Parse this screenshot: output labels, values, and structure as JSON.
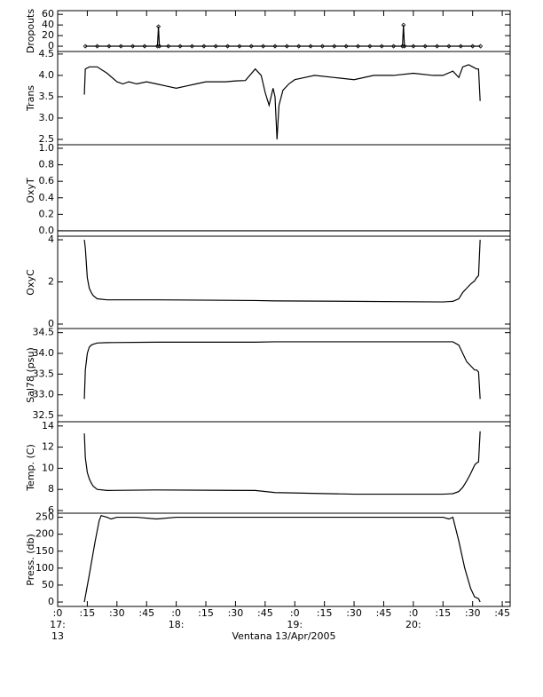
{
  "chart_data": [
    {
      "type": "line",
      "ylabel": "Dropouts",
      "ylim": [
        -10,
        67
      ],
      "yticks": [
        0,
        20,
        40,
        60
      ],
      "markers": true,
      "x": [
        14,
        20,
        26,
        32,
        38,
        44,
        50.5,
        51,
        51.5,
        56,
        62,
        68,
        74,
        80,
        86,
        92,
        98,
        104,
        110,
        116,
        122,
        128,
        134,
        140,
        146,
        152,
        158,
        164,
        170,
        174.5,
        175,
        175.5,
        180,
        186,
        192,
        198,
        204,
        210,
        214
      ],
      "series": [
        {
          "color": "#000000",
          "values": [
            0,
            0,
            0,
            0,
            0,
            0,
            0,
            37,
            0,
            0,
            0,
            0,
            0,
            0,
            0,
            0,
            0,
            0,
            0,
            0,
            0,
            0,
            0,
            0,
            0,
            0,
            0,
            0,
            0,
            0,
            40,
            0,
            0,
            0,
            0,
            0,
            0,
            0,
            0
          ]
        }
      ]
    },
    {
      "type": "line",
      "ylabel": "Trans",
      "ylim": [
        2.375,
        4.56
      ],
      "yticks": [
        2.5,
        {
          "value": 3,
          "label": "3.0"
        },
        3.5,
        {
          "value": 4,
          "label": "4.0"
        },
        4.5
      ],
      "markers": false,
      "x": [
        13.5,
        14,
        16,
        20,
        25,
        30,
        33,
        36,
        40,
        45,
        50,
        55,
        60,
        65,
        70,
        75,
        80,
        85,
        90,
        95,
        100,
        103,
        105,
        107,
        109,
        110,
        111,
        112,
        114,
        117,
        120,
        125,
        130,
        140,
        150,
        160,
        170,
        180,
        190,
        195,
        200,
        203,
        205,
        208,
        210,
        212,
        213,
        213.8
      ],
      "series": [
        {
          "color": "#000000",
          "values": [
            3.55,
            4.15,
            4.2,
            4.2,
            4.05,
            3.85,
            3.8,
            3.85,
            3.8,
            3.85,
            3.8,
            3.75,
            3.7,
            3.75,
            3.8,
            3.85,
            3.85,
            3.85,
            3.87,
            3.88,
            4.15,
            4.0,
            3.6,
            3.3,
            3.7,
            3.5,
            2.5,
            3.3,
            3.65,
            3.8,
            3.9,
            3.95,
            4.0,
            3.95,
            3.9,
            4.0,
            4.0,
            4.05,
            4.0,
            4.0,
            4.1,
            3.95,
            4.2,
            4.25,
            4.2,
            4.15,
            4.15,
            3.4
          ]
        }
      ]
    },
    {
      "type": "line",
      "ylabel": "OxyT",
      "ylim": [
        -0.065,
        1.043
      ],
      "yticks": [
        {
          "value": 0,
          "label": "0.0"
        },
        0.2,
        0.4,
        0.6,
        0.8,
        {
          "value": 1,
          "label": "1.0"
        }
      ],
      "markers": false,
      "x": [
        0,
        229
      ],
      "series": [
        {
          "color": "#000000",
          "values": [
            0,
            0
          ]
        }
      ]
    },
    {
      "type": "line",
      "ylabel": "OxyC",
      "ylim": [
        -0.21,
        4.17
      ],
      "yticks": [
        0,
        2,
        4
      ],
      "markers": false,
      "x": [
        13.5,
        14,
        15,
        16,
        17,
        18,
        20,
        25,
        50,
        100,
        110,
        150,
        195,
        200,
        203,
        205,
        207,
        209,
        211,
        212,
        213,
        213.8
      ],
      "series": [
        {
          "color": "#000000",
          "values": [
            4.0,
            3.6,
            2.2,
            1.7,
            1.5,
            1.35,
            1.2,
            1.15,
            1.15,
            1.12,
            1.1,
            1.08,
            1.05,
            1.08,
            1.2,
            1.5,
            1.7,
            1.9,
            2.05,
            2.2,
            2.3,
            4.0
          ]
        }
      ]
    },
    {
      "type": "line",
      "ylabel": "Sal78 (psu)",
      "ylim": [
        32.35,
        34.6
      ],
      "yticks": [
        32.5,
        {
          "value": 33,
          "label": "33.0"
        },
        33.5,
        {
          "value": 34,
          "label": "34.0"
        },
        34.5
      ],
      "markers": false,
      "x": [
        13.5,
        14,
        15,
        16,
        17,
        18,
        20,
        25,
        50,
        100,
        110,
        150,
        195,
        200,
        203,
        205,
        207,
        209,
        211,
        212,
        213,
        213.8
      ],
      "series": [
        {
          "color": "#000000",
          "values": [
            32.9,
            33.6,
            34.0,
            34.15,
            34.2,
            34.22,
            34.25,
            34.26,
            34.27,
            34.27,
            34.28,
            34.28,
            34.28,
            34.28,
            34.2,
            34.0,
            33.8,
            33.7,
            33.6,
            33.6,
            33.55,
            32.9
          ]
        }
      ]
    },
    {
      "type": "line",
      "ylabel": "Temp. (C)",
      "ylim": [
        5.75,
        14.4
      ],
      "yticks": [
        6,
        8,
        10,
        12,
        14
      ],
      "markers": false,
      "x": [
        13.5,
        14,
        15,
        16,
        17,
        18,
        20,
        25,
        50,
        100,
        110,
        150,
        195,
        200,
        203,
        205,
        207,
        209,
        211,
        212,
        213,
        213.8
      ],
      "series": [
        {
          "color": "#000000",
          "values": [
            13.3,
            11.0,
            9.6,
            9.0,
            8.6,
            8.3,
            8.0,
            7.9,
            7.95,
            7.9,
            7.7,
            7.55,
            7.55,
            7.6,
            7.8,
            8.2,
            8.8,
            9.5,
            10.3,
            10.5,
            10.6,
            13.5
          ]
        }
      ]
    },
    {
      "type": "line",
      "ylabel": "Press. (db)",
      "ylim": [
        -13,
        262
      ],
      "yticks": [
        0,
        50,
        100,
        150,
        200,
        250
      ],
      "markers": false,
      "x": [
        13.5,
        16,
        19,
        21,
        22,
        25,
        27,
        30,
        40,
        50,
        60,
        100,
        150,
        190,
        195,
        198,
        200,
        203,
        206,
        209,
        211,
        213,
        213.8
      ],
      "series": [
        {
          "color": "#000000",
          "values": [
            0,
            80,
            180,
            240,
            255,
            250,
            245,
            250,
            250,
            245,
            250,
            250,
            250,
            250,
            250,
            245,
            250,
            180,
            100,
            40,
            15,
            10,
            0
          ]
        }
      ]
    }
  ],
  "x_axis": {
    "xlim": [
      0,
      229
    ],
    "xticks": [
      {
        "value": 0,
        "label": ":0"
      },
      {
        "value": 15,
        "label": ":15"
      },
      {
        "value": 30,
        "label": ":30"
      },
      {
        "value": 45,
        "label": ":45"
      },
      {
        "value": 60,
        "label": ":0"
      },
      {
        "value": 75,
        "label": ":15"
      },
      {
        "value": 90,
        "label": ":30"
      },
      {
        "value": 105,
        "label": ":45"
      },
      {
        "value": 120,
        "label": ":0"
      },
      {
        "value": 135,
        "label": ":15"
      },
      {
        "value": 150,
        "label": ":30"
      },
      {
        "value": 165,
        "label": ":45"
      },
      {
        "value": 180,
        "label": ":0"
      },
      {
        "value": 195,
        "label": ":15"
      },
      {
        "value": 210,
        "label": ":30"
      },
      {
        "value": 225,
        "label": ":45"
      }
    ],
    "hour_ticks": [
      {
        "value": 0,
        "label": "17:"
      },
      {
        "value": 60,
        "label": "18:"
      },
      {
        "value": 120,
        "label": "19:"
      },
      {
        "value": 180,
        "label": "20:"
      }
    ],
    "day_label": "13",
    "xlabel": "Ventana 13/Apr/2005"
  }
}
